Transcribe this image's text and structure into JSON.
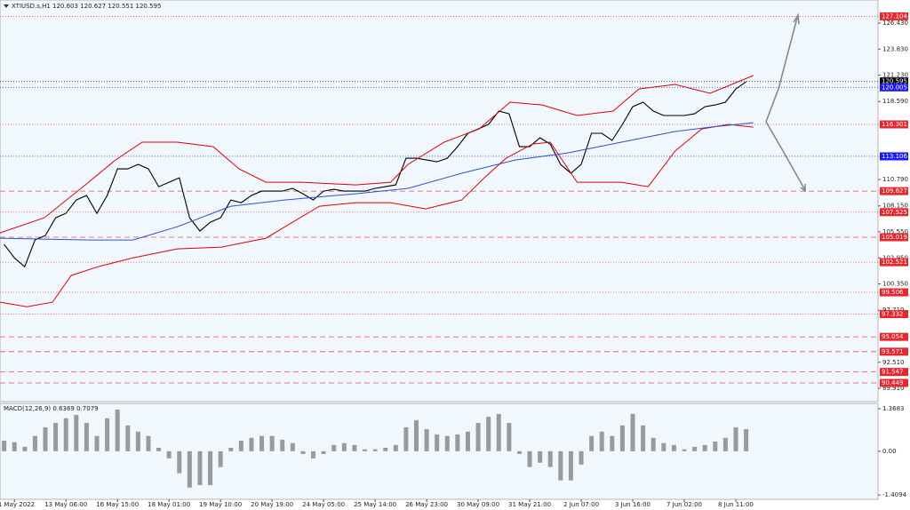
{
  "chart_data": [
    {
      "type": "line",
      "title": "XTIUSD.s,H1  120.603 120.627 120.551 120.595",
      "x": [
        0,
        1,
        2,
        3,
        4,
        5,
        6,
        7,
        8,
        9,
        10,
        11,
        12,
        13,
        14,
        15,
        16,
        17,
        18,
        19,
        20,
        21,
        22,
        23,
        24,
        25,
        26,
        27,
        28,
        29,
        30,
        31,
        32,
        33,
        34,
        35,
        36,
        37,
        38,
        39,
        40,
        41,
        42,
        43,
        44,
        45,
        46,
        47,
        48,
        49,
        50,
        51,
        52,
        53,
        54,
        55,
        56,
        57,
        58,
        59,
        60,
        61,
        62,
        63,
        64,
        65,
        66,
        67,
        68,
        69,
        70,
        71,
        72
      ],
      "xlim": [
        -0.4,
        84.8
      ],
      "ylim": [
        88.58,
        128.74
      ],
      "yticks": [
        {
          "value": 126.43,
          "label": "126.430"
        },
        {
          "value": 123.83,
          "label": "123.830"
        },
        {
          "value": 121.23,
          "label": "121.230"
        },
        {
          "value": 118.59,
          "label": "118.590"
        },
        {
          "value": 110.79,
          "label": "110.790"
        },
        {
          "value": 108.15,
          "label": "108.150"
        },
        {
          "value": 105.55,
          "label": "105.550"
        },
        {
          "value": 102.95,
          "label": "102.950"
        },
        {
          "value": 100.35,
          "label": "100.350"
        },
        {
          "value": 97.71,
          "label": "97.710"
        },
        {
          "value": 92.51,
          "label": "92.510"
        },
        {
          "value": 89.91,
          "label": "89.910"
        }
      ],
      "series": [
        {
          "color": "#000000",
          "values": [
            104.3,
            102.96,
            102.07,
            104.74,
            105.19,
            106.96,
            107.41,
            108.74,
            109.19,
            107.41,
            109.19,
            111.85,
            111.85,
            112.3,
            111.85,
            110.07,
            110.52,
            110.96,
            106.96,
            105.63,
            106.52,
            106.96,
            108.74,
            108.47,
            109.19,
            109.63,
            109.63,
            109.63,
            109.9,
            109.36,
            108.74,
            109.63,
            109.81,
            109.63,
            109.63,
            109.63,
            109.9,
            110.07,
            110.25,
            112.92,
            112.92,
            112.74,
            112.56,
            112.92,
            114.07,
            115.41,
            115.85,
            116.3,
            117.63,
            117.36,
            114.07,
            114.07,
            114.96,
            114.34,
            112.3,
            111.41,
            112.3,
            115.41,
            115.41,
            114.7,
            116.3,
            118.07,
            118.52,
            117.63,
            117.19,
            117.19,
            117.19,
            117.36,
            118.07,
            118.25,
            118.52,
            119.85,
            120.56
          ]
        },
        {
          "color": "#e00000",
          "x": [
            -0.4,
            3.9,
            8.2,
            10.8,
            13.4,
            16.8,
            20.3,
            22.8,
            25.4,
            28.9,
            34.1,
            37.5,
            39.2,
            42.7,
            46.1,
            49.1,
            52.2,
            55.6,
            59.1,
            61.6,
            65.1,
            68.5,
            72.7
          ],
          "values": [
            105.45,
            106.96,
            110.52,
            112.74,
            114.52,
            114.52,
            114.07,
            111.85,
            110.52,
            110.52,
            110.25,
            110.52,
            112.3,
            114.52,
            115.85,
            118.52,
            118.25,
            117.19,
            117.63,
            119.85,
            120.3,
            119.41,
            121.19
          ]
        },
        {
          "color": "#e00000",
          "x": [
            -0.4,
            2.2,
            4.7,
            6.5,
            9.1,
            12.5,
            16.8,
            21.1,
            25.4,
            28.0,
            30.6,
            34.1,
            37.5,
            40.9,
            44.4,
            46.6,
            48.7,
            51.3,
            53.0,
            55.6,
            59.9,
            62.5,
            65.1,
            67.7,
            70.3,
            72.7
          ],
          "values": [
            98.52,
            98.07,
            98.52,
            101.19,
            102.07,
            102.96,
            103.85,
            104.03,
            104.92,
            106.52,
            108.12,
            108.47,
            108.47,
            107.85,
            108.74,
            110.96,
            112.92,
            114.34,
            114.52,
            110.52,
            110.52,
            110.07,
            113.63,
            115.85,
            116.3,
            116.03
          ]
        },
        {
          "color": "#3050d0",
          "x": [
            -0.4,
            8.2,
            12.5,
            16.8,
            22.0,
            27.2,
            34.1,
            39.2,
            44.4,
            49.6,
            54.7,
            59.9,
            65.1,
            68.5,
            72.7
          ],
          "values": [
            104.92,
            104.74,
            104.74,
            106.07,
            108.12,
            108.74,
            109.36,
            109.9,
            111.41,
            112.74,
            113.45,
            114.52,
            115.59,
            116.03,
            116.47
          ]
        }
      ],
      "levels": [
        {
          "value": 127.104,
          "color": "#e8262b",
          "dash": "dotted"
        },
        {
          "value": 120.595,
          "color": "#000000",
          "dash": "dotted"
        },
        {
          "value": 120.005,
          "color": "#1a1aff",
          "dash": "dotted"
        },
        {
          "value": 116.301,
          "color": "#e8262b",
          "dash": "dotted"
        },
        {
          "value": 113.106,
          "color": "#1a1aff",
          "dash": "dotted"
        },
        {
          "value": 109.627,
          "color": "#e8262b",
          "dash": "dashed"
        },
        {
          "value": 107.525,
          "color": "#e8262b",
          "dash": "dotted"
        },
        {
          "value": 105.019,
          "color": "#e8262b",
          "dash": "dashed"
        },
        {
          "value": 102.521,
          "color": "#e8262b",
          "dash": "dotted"
        },
        {
          "value": 99.506,
          "color": "#e8262b",
          "dash": "dotted"
        },
        {
          "value": 97.332,
          "color": "#e8262b",
          "dash": "dotted"
        },
        {
          "value": 95.054,
          "color": "#e8262b",
          "dash": "dashed"
        },
        {
          "value": 93.571,
          "color": "#e8262b",
          "dash": "dashed"
        },
        {
          "value": 91.547,
          "color": "#e8262b",
          "dash": "dashed"
        },
        {
          "value": 90.449,
          "color": "#e8262b",
          "dash": "dashed"
        }
      ]
    },
    {
      "type": "bar",
      "title": "MACD(12,26,9) 0.6369 0.7079",
      "color": "#9a9a9a",
      "x": [
        0,
        1,
        2,
        3,
        4,
        5,
        6,
        7,
        8,
        9,
        10,
        11,
        12,
        13,
        14,
        15,
        16,
        17,
        18,
        19,
        20,
        21,
        22,
        23,
        24,
        25,
        26,
        27,
        28,
        29,
        30,
        31,
        32,
        33,
        34,
        35,
        36,
        37,
        38,
        39,
        40,
        41,
        42,
        43,
        44,
        45,
        46,
        47,
        48,
        49,
        50,
        51,
        52,
        53,
        54,
        55,
        56,
        57,
        58,
        59,
        60,
        61,
        62,
        63,
        64,
        65,
        66,
        67,
        68,
        69,
        70,
        71,
        72
      ],
      "values": [
        0.34,
        0.29,
        0.14,
        0.49,
        0.77,
        0.91,
        1.06,
        1.17,
        0.91,
        0.49,
        1.06,
        1.34,
        0.83,
        0.63,
        0.49,
        0.11,
        -0.23,
        -0.71,
        -1.17,
        -1.09,
        -1.09,
        -0.51,
        0.11,
        0.34,
        0.43,
        0.49,
        0.49,
        0.37,
        0.26,
        -0.09,
        -0.23,
        -0.09,
        0.2,
        0.26,
        0.2,
        0.06,
        0.06,
        0.11,
        0.2,
        0.77,
        1.0,
        0.71,
        0.54,
        0.49,
        0.54,
        0.63,
        0.91,
        1.11,
        1.2,
        0.91,
        -0.09,
        -0.51,
        -0.37,
        -0.51,
        -0.94,
        -0.94,
        -0.43,
        0.49,
        0.63,
        0.49,
        0.83,
        1.2,
        0.83,
        0.43,
        0.26,
        0.2,
        0.06,
        0.14,
        0.2,
        0.31,
        0.43,
        0.77,
        0.71
      ],
      "xlim": [
        -0.4,
        84.8
      ],
      "xticks": [
        {
          "value": 1,
          "label": "11 May 2022"
        },
        {
          "value": 6,
          "label": "13 May 06:00"
        },
        {
          "value": 11,
          "label": "16 May 15:00"
        },
        {
          "value": 16,
          "label": "18 May 01:00"
        },
        {
          "value": 21,
          "label": "19 May 10:00"
        },
        {
          "value": 26,
          "label": "20 May 19:00"
        },
        {
          "value": 31,
          "label": "24 May 05:00"
        },
        {
          "value": 36,
          "label": "25 May 14:00"
        },
        {
          "value": 41,
          "label": "26 May 23:00"
        },
        {
          "value": 46,
          "label": "30 May 09:00"
        },
        {
          "value": 51,
          "label": "31 May 21:00"
        },
        {
          "value": 56,
          "label": "2 Jun 07:00"
        },
        {
          "value": 61,
          "label": "3 Jun 16:00"
        },
        {
          "value": 66,
          "label": "7 Jun 02:00"
        },
        {
          "value": 71,
          "label": "8 Jun 11:00"
        }
      ],
      "ylim": [
        -1.55,
        1.54
      ],
      "yticks": [
        1.3683,
        {
          "value": 0,
          "label": "0.00"
        },
        -1.4094
      ]
    }
  ]
}
